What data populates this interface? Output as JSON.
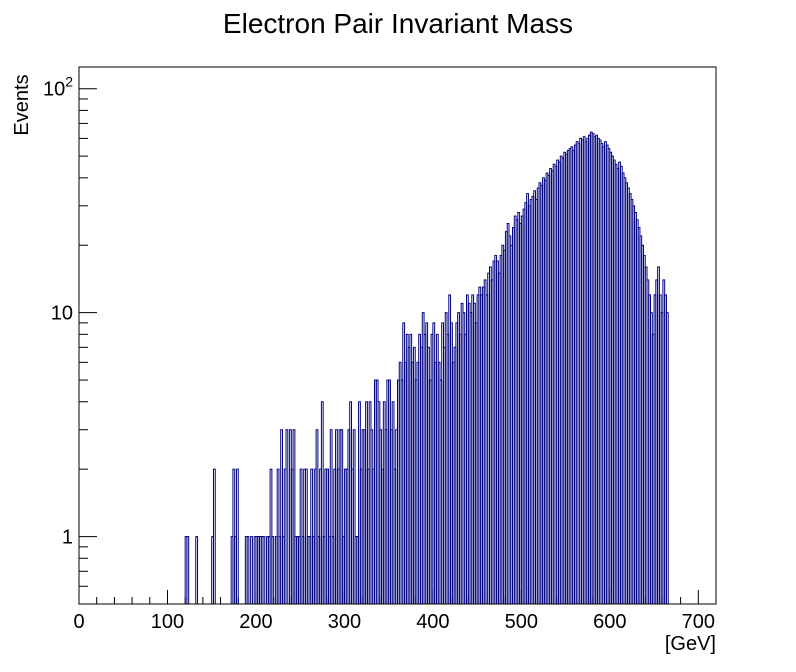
{
  "chart_data": {
    "type": "histogram",
    "title": "Electron Pair Invariant Mass",
    "xlabel": "[GeV]",
    "ylabel": "Events",
    "xlim": [
      0,
      720
    ],
    "ylim": [
      0.5,
      125
    ],
    "yscale": "log",
    "grid": false,
    "line_color": "#000080",
    "x_ticks": [
      0,
      100,
      200,
      300,
      400,
      500,
      600,
      700
    ],
    "x_tick_labels": [
      "0",
      "100",
      "200",
      "300",
      "400",
      "500",
      "600",
      "700"
    ],
    "y_major_ticks": [
      1,
      10,
      100
    ],
    "y_tick_labels": [
      {
        "base": "1",
        "exp": ""
      },
      {
        "base": "10",
        "exp": ""
      },
      {
        "base": "10",
        "exp": "2"
      }
    ],
    "bin_width": 2,
    "series": [
      {
        "x_start": 120,
        "values": [
          1,
          1,
          0,
          0,
          0,
          0,
          1,
          0,
          0,
          0,
          0,
          0,
          0,
          0,
          0,
          1,
          2,
          0,
          0,
          0,
          0,
          0,
          0,
          0,
          0,
          0,
          1,
          2,
          1,
          2,
          0,
          0,
          0,
          0,
          1,
          1,
          0,
          1,
          0,
          1,
          1,
          1,
          1,
          1,
          1,
          0,
          1,
          1,
          2,
          1,
          0,
          1,
          2,
          1,
          3,
          1,
          2,
          3,
          0,
          3,
          2,
          3,
          1,
          1,
          1,
          2,
          1,
          2,
          2,
          1,
          1,
          2,
          1,
          2,
          3,
          1,
          2,
          4,
          1,
          2,
          2,
          1,
          3,
          1,
          2,
          3,
          2,
          3,
          3,
          1,
          2,
          2,
          3,
          4,
          2,
          3,
          1,
          1,
          4,
          2,
          3,
          3,
          4,
          2,
          4,
          3,
          2,
          5,
          5,
          4,
          3,
          2,
          4,
          3,
          5,
          5,
          3,
          4,
          2,
          3,
          5,
          6,
          5,
          9,
          6,
          8,
          7,
          8,
          6,
          7,
          5,
          6,
          8,
          7,
          10,
          8,
          9,
          7,
          5,
          8,
          9,
          6,
          8,
          6,
          5,
          9,
          7,
          10,
          8,
          12,
          9,
          6,
          7,
          9,
          10,
          8,
          11,
          10,
          8,
          12,
          11,
          10,
          12,
          11,
          9,
          12,
          13,
          12,
          13,
          14,
          12,
          15,
          16,
          14,
          17,
          18,
          17,
          15,
          18,
          20,
          19,
          23,
          25,
          22,
          20,
          24,
          27,
          26,
          28,
          25,
          27,
          29,
          31,
          34,
          30,
          32,
          33,
          35,
          32,
          36,
          38,
          37,
          40,
          39,
          42,
          41,
          44,
          43,
          46,
          45,
          48,
          47,
          50,
          49,
          52,
          51,
          53,
          54,
          55,
          53,
          56,
          58,
          57,
          60,
          59,
          61,
          58,
          60,
          62,
          64,
          63,
          61,
          62,
          60,
          59,
          57,
          55,
          58,
          56,
          54,
          52,
          50,
          48,
          46,
          44,
          47,
          45,
          42,
          40,
          38,
          36,
          34,
          32,
          30,
          28,
          26,
          24,
          22,
          20,
          18,
          16,
          14,
          12,
          10,
          8,
          12,
          14,
          16,
          12,
          10,
          14,
          12,
          10
        ]
      }
    ]
  }
}
